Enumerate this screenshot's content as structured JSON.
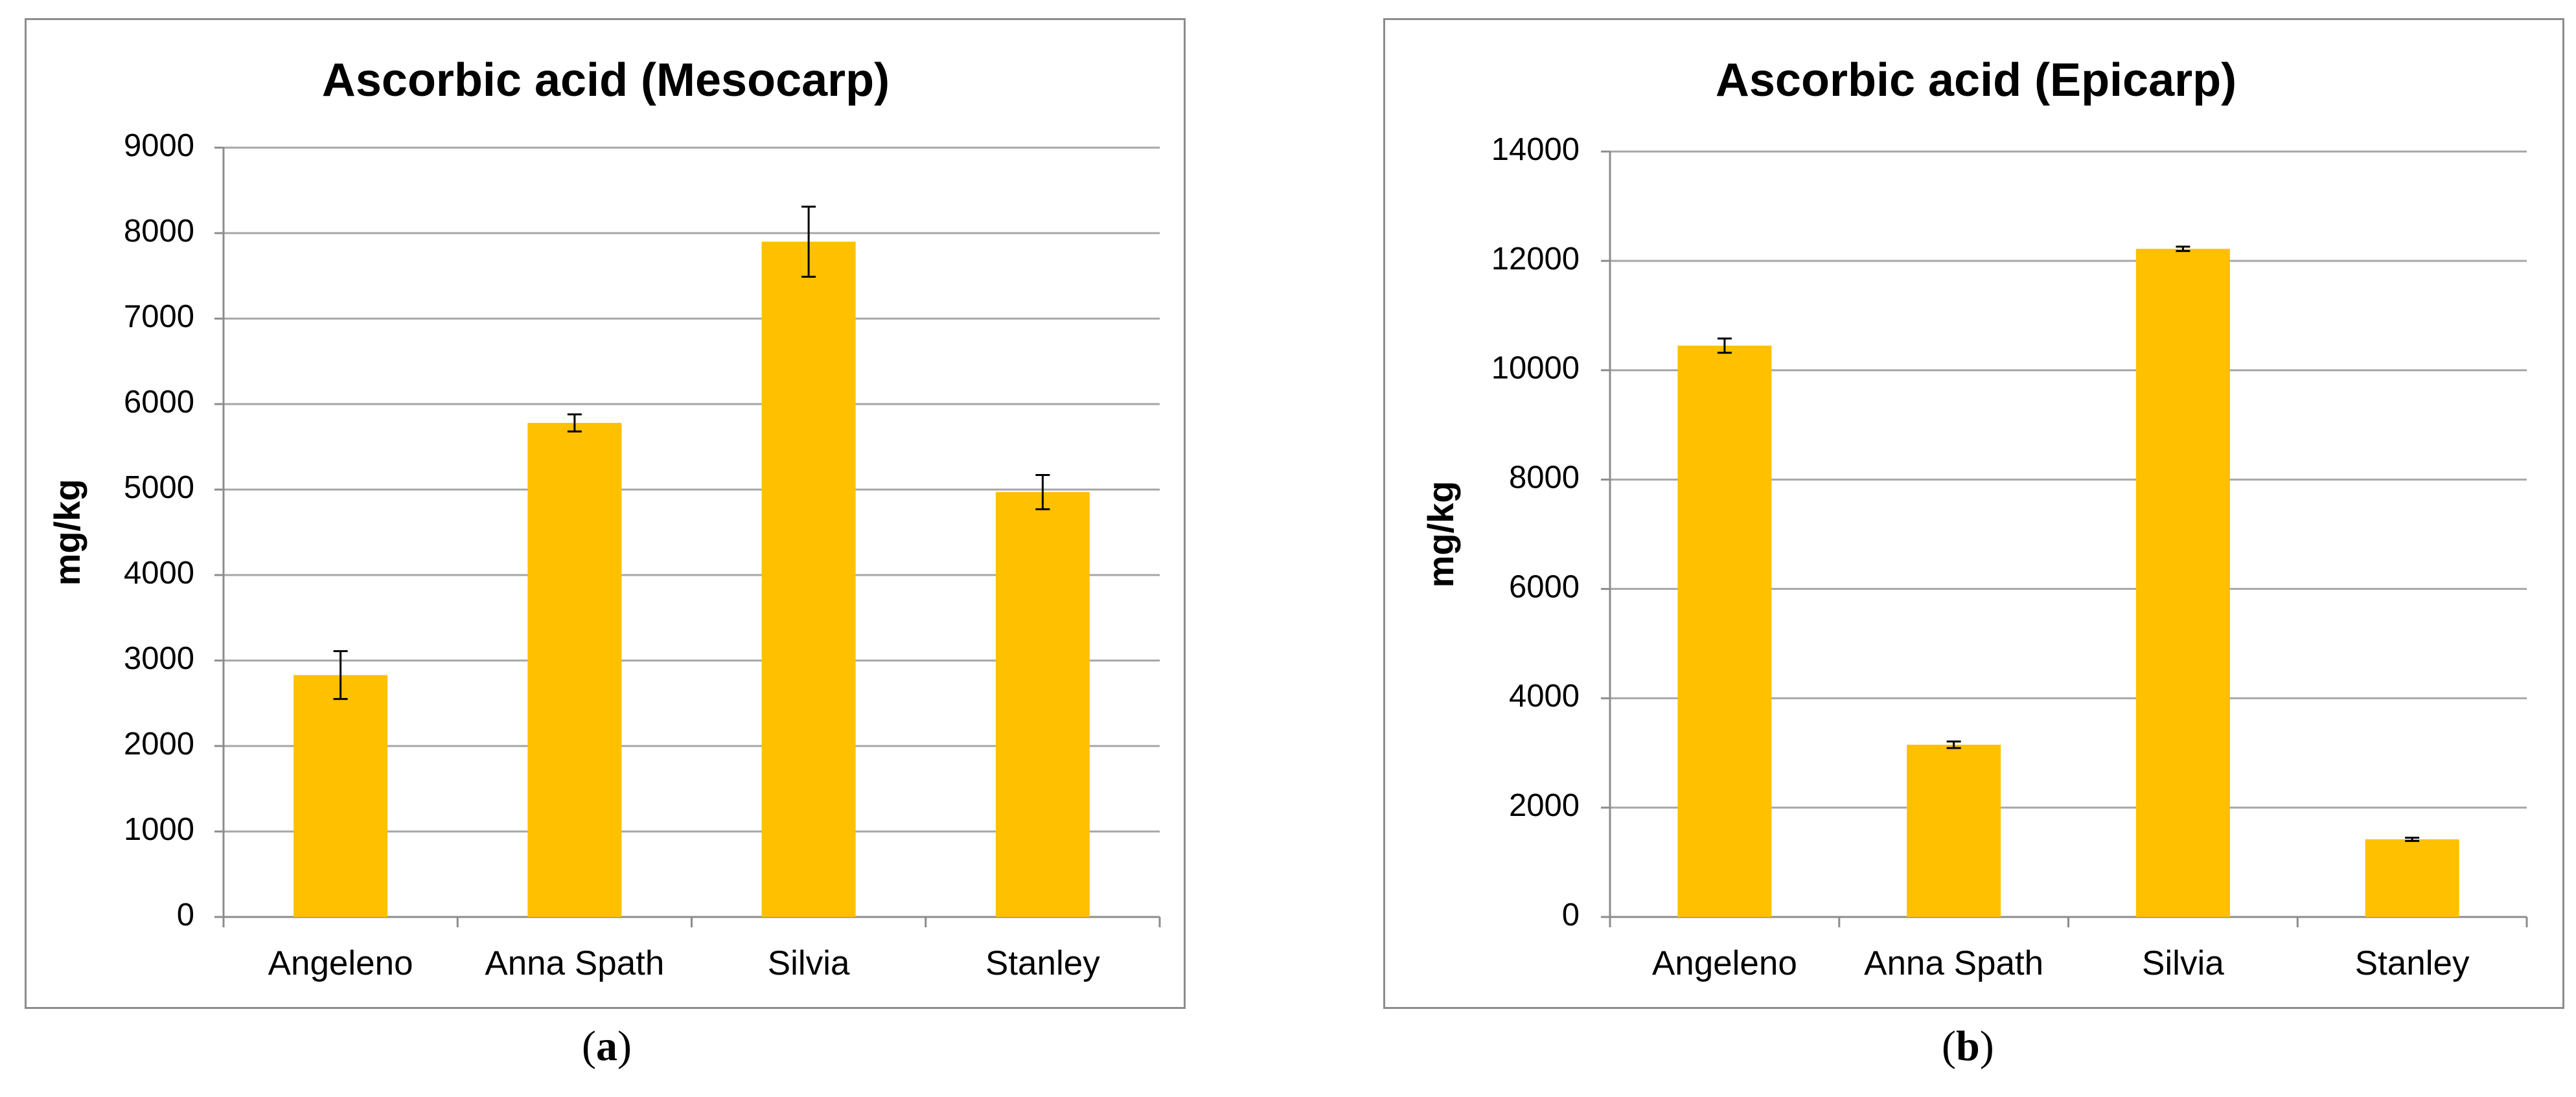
{
  "colors": {
    "bar": "#FFC000",
    "grid": "#a6a6a6",
    "axis": "#8c8c8c",
    "error_bar": "#000000"
  },
  "chart_data": [
    {
      "type": "bar",
      "title": "Ascorbic acid (Mesocarp)",
      "xlabel": "",
      "ylabel": "mg/kg",
      "categories": [
        "Angeleno",
        "Anna Spath",
        "Silvia",
        "Stanley"
      ],
      "values": [
        2830,
        5780,
        7900,
        4970
      ],
      "errors": [
        280,
        100,
        410,
        200
      ],
      "ylim": [
        0,
        9000
      ],
      "yticks": [
        0,
        1000,
        2000,
        3000,
        4000,
        5000,
        6000,
        7000,
        8000,
        9000
      ],
      "ytick_labels": [
        "0",
        "1000",
        "2000",
        "3000",
        "4000",
        "5000",
        "6000",
        "7000",
        "8000",
        "9000"
      ],
      "grid": true,
      "panel_label": "a"
    },
    {
      "type": "bar",
      "title": "Ascorbic acid (Epicarp)",
      "xlabel": "",
      "ylabel": "mg/kg",
      "categories": [
        "Angeleno",
        "Anna Spath",
        "Silvia",
        "Stanley"
      ],
      "values": [
        10450,
        3150,
        12220,
        1420
      ],
      "errors": [
        130,
        60,
        40,
        30
      ],
      "ylim": [
        0,
        14000
      ],
      "yticks": [
        0,
        2000,
        4000,
        6000,
        8000,
        10000,
        12000,
        14000
      ],
      "ytick_labels": [
        "0",
        "2000",
        "4000",
        "6000",
        "8000",
        "10000",
        "12000",
        "14000"
      ],
      "grid": true,
      "panel_label": "b"
    }
  ]
}
